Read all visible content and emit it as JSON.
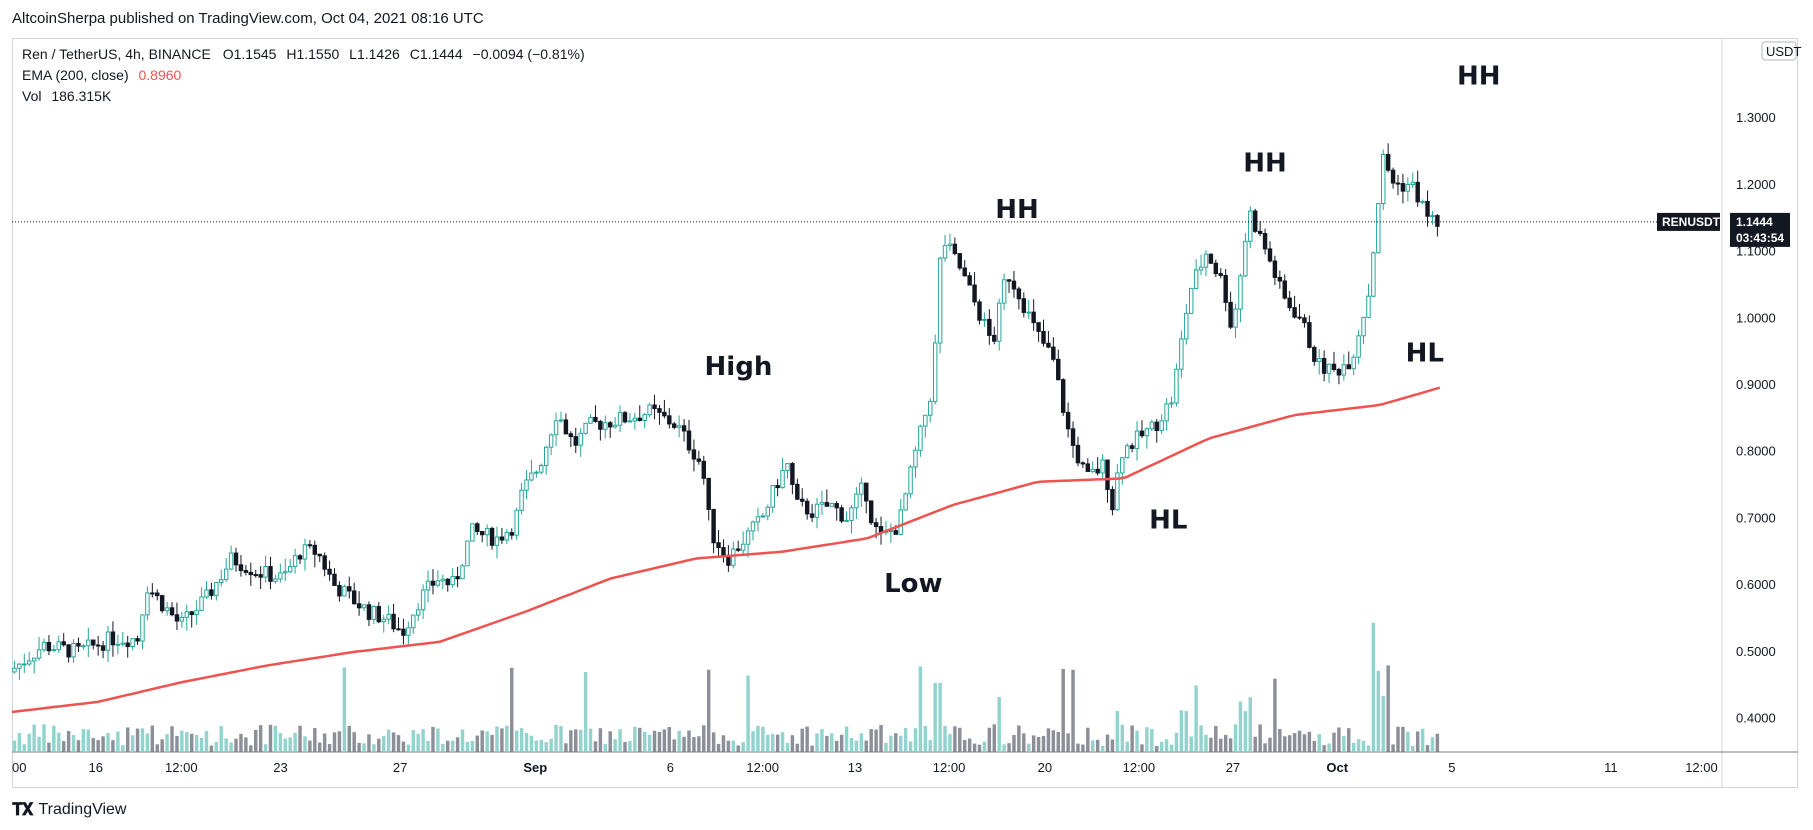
{
  "header": {
    "publisher": "AltcoinSherpa published on TradingView.com, Oct 04, 2021 08:16 UTC"
  },
  "legend": {
    "symbol": "Ren / TetherUS, 4h, BINANCE",
    "o_label": "O",
    "o_value": "1.1545",
    "h_label": "H",
    "h_value": "1.1550",
    "l_label": "L",
    "l_value": "1.1426",
    "c_label": "C",
    "c_value": "1.1444",
    "change": "−0.0094 (−0.81%)",
    "ema_label": "EMA (200, close)",
    "ema_value": "0.8960",
    "vol_label": "Vol",
    "vol_value": "186.315K"
  },
  "footer": {
    "brand": "TradingView"
  },
  "colors": {
    "up": "#26a69a",
    "down": "#131722",
    "ema": "#ef5350",
    "vol_up": "#80cbc4",
    "vol_down": "#787b86",
    "grid": "#d1d4dc"
  },
  "chart_data": {
    "type": "candlestick",
    "symbol_tag": "RENUSDT",
    "last_price": "1.1444",
    "countdown": "03:43:54",
    "currency": "USDT",
    "ylim": [
      0.35,
      1.42
    ],
    "y_ticks": [
      "0.4000",
      "0.5000",
      "0.6000",
      "0.7000",
      "0.8000",
      "0.9000",
      "1.0000",
      "1.1000",
      "1.2000",
      "1.3000"
    ],
    "x_ticks": [
      {
        "label": "00",
        "pos": 0.0,
        "bold": false
      },
      {
        "label": "16",
        "pos": 0.049,
        "bold": false
      },
      {
        "label": "12:00",
        "pos": 0.099,
        "bold": false
      },
      {
        "label": "23",
        "pos": 0.157,
        "bold": false
      },
      {
        "label": "27",
        "pos": 0.227,
        "bold": false
      },
      {
        "label": "Sep",
        "pos": 0.306,
        "bold": true
      },
      {
        "label": "6",
        "pos": 0.385,
        "bold": false
      },
      {
        "label": "12:00",
        "pos": 0.439,
        "bold": false
      },
      {
        "label": "13",
        "pos": 0.493,
        "bold": false
      },
      {
        "label": "12:00",
        "pos": 0.548,
        "bold": false
      },
      {
        "label": "20",
        "pos": 0.604,
        "bold": false
      },
      {
        "label": "12:00",
        "pos": 0.659,
        "bold": false
      },
      {
        "label": "27",
        "pos": 0.714,
        "bold": false
      },
      {
        "label": "Oct",
        "pos": 0.775,
        "bold": true
      },
      {
        "label": "5",
        "pos": 0.842,
        "bold": false
      },
      {
        "label": "11",
        "pos": 0.935,
        "bold": false
      },
      {
        "label": "12:00",
        "pos": 0.988,
        "bold": false
      }
    ],
    "price_path": [
      [
        0.0,
        0.47
      ],
      [
        0.02,
        0.51
      ],
      [
        0.04,
        0.5
      ],
      [
        0.06,
        0.52
      ],
      [
        0.075,
        0.52
      ],
      [
        0.08,
        0.6
      ],
      [
        0.09,
        0.57
      ],
      [
        0.1,
        0.54
      ],
      [
        0.115,
        0.58
      ],
      [
        0.13,
        0.64
      ],
      [
        0.145,
        0.62
      ],
      [
        0.16,
        0.61
      ],
      [
        0.17,
        0.65
      ],
      [
        0.18,
        0.65
      ],
      [
        0.19,
        0.6
      ],
      [
        0.2,
        0.58
      ],
      [
        0.21,
        0.56
      ],
      [
        0.22,
        0.55
      ],
      [
        0.23,
        0.53
      ],
      [
        0.24,
        0.58
      ],
      [
        0.25,
        0.61
      ],
      [
        0.26,
        0.6
      ],
      [
        0.27,
        0.68
      ],
      [
        0.285,
        0.67
      ],
      [
        0.295,
        0.69
      ],
      [
        0.3,
        0.74
      ],
      [
        0.31,
        0.78
      ],
      [
        0.32,
        0.86
      ],
      [
        0.33,
        0.81
      ],
      [
        0.34,
        0.84
      ],
      [
        0.36,
        0.85
      ],
      [
        0.375,
        0.86
      ],
      [
        0.39,
        0.84
      ],
      [
        0.405,
        0.78
      ],
      [
        0.41,
        0.68
      ],
      [
        0.42,
        0.64
      ],
      [
        0.43,
        0.67
      ],
      [
        0.44,
        0.7
      ],
      [
        0.45,
        0.76
      ],
      [
        0.455,
        0.78
      ],
      [
        0.46,
        0.72
      ],
      [
        0.47,
        0.71
      ],
      [
        0.48,
        0.72
      ],
      [
        0.49,
        0.7
      ],
      [
        0.5,
        0.75
      ],
      [
        0.505,
        0.69
      ],
      [
        0.51,
        0.67
      ],
      [
        0.52,
        0.69
      ],
      [
        0.53,
        0.8
      ],
      [
        0.54,
        0.9
      ],
      [
        0.545,
        1.12
      ],
      [
        0.555,
        1.08
      ],
      [
        0.565,
        1.02
      ],
      [
        0.575,
        0.96
      ],
      [
        0.583,
        1.07
      ],
      [
        0.59,
        1.04
      ],
      [
        0.6,
        0.98
      ],
      [
        0.61,
        0.94
      ],
      [
        0.62,
        0.82
      ],
      [
        0.63,
        0.76
      ],
      [
        0.64,
        0.78
      ],
      [
        0.645,
        0.72
      ],
      [
        0.65,
        0.8
      ],
      [
        0.66,
        0.82
      ],
      [
        0.67,
        0.84
      ],
      [
        0.68,
        0.88
      ],
      [
        0.69,
        1.04
      ],
      [
        0.7,
        1.1
      ],
      [
        0.71,
        1.05
      ],
      [
        0.715,
        0.98
      ],
      [
        0.725,
        1.16
      ],
      [
        0.735,
        1.1
      ],
      [
        0.745,
        1.03
      ],
      [
        0.755,
        1.0
      ],
      [
        0.765,
        0.93
      ],
      [
        0.775,
        0.92
      ],
      [
        0.785,
        0.94
      ],
      [
        0.795,
        1.04
      ],
      [
        0.803,
        1.24
      ],
      [
        0.81,
        1.2
      ],
      [
        0.82,
        1.2
      ],
      [
        0.83,
        1.15
      ],
      [
        0.835,
        1.144
      ]
    ],
    "ema_path": [
      [
        0.0,
        0.41
      ],
      [
        0.05,
        0.425
      ],
      [
        0.1,
        0.455
      ],
      [
        0.15,
        0.48
      ],
      [
        0.2,
        0.5
      ],
      [
        0.25,
        0.515
      ],
      [
        0.3,
        0.56
      ],
      [
        0.35,
        0.61
      ],
      [
        0.4,
        0.64
      ],
      [
        0.45,
        0.65
      ],
      [
        0.5,
        0.67
      ],
      [
        0.55,
        0.72
      ],
      [
        0.6,
        0.755
      ],
      [
        0.65,
        0.76
      ],
      [
        0.7,
        0.82
      ],
      [
        0.75,
        0.855
      ],
      [
        0.8,
        0.87
      ],
      [
        0.835,
        0.896
      ]
    ],
    "annotations": [
      {
        "text": "High",
        "x": 0.405,
        "y": 0.915
      },
      {
        "text": "Low",
        "x": 0.51,
        "y": 0.59
      },
      {
        "text": "HH",
        "x": 0.575,
        "y": 1.15
      },
      {
        "text": "HL",
        "x": 0.665,
        "y": 0.685
      },
      {
        "text": "HH",
        "x": 0.72,
        "y": 1.22
      },
      {
        "text": "HL",
        "x": 0.815,
        "y": 0.935
      },
      {
        "text": "HH",
        "x": 0.845,
        "y": 1.35
      }
    ]
  }
}
